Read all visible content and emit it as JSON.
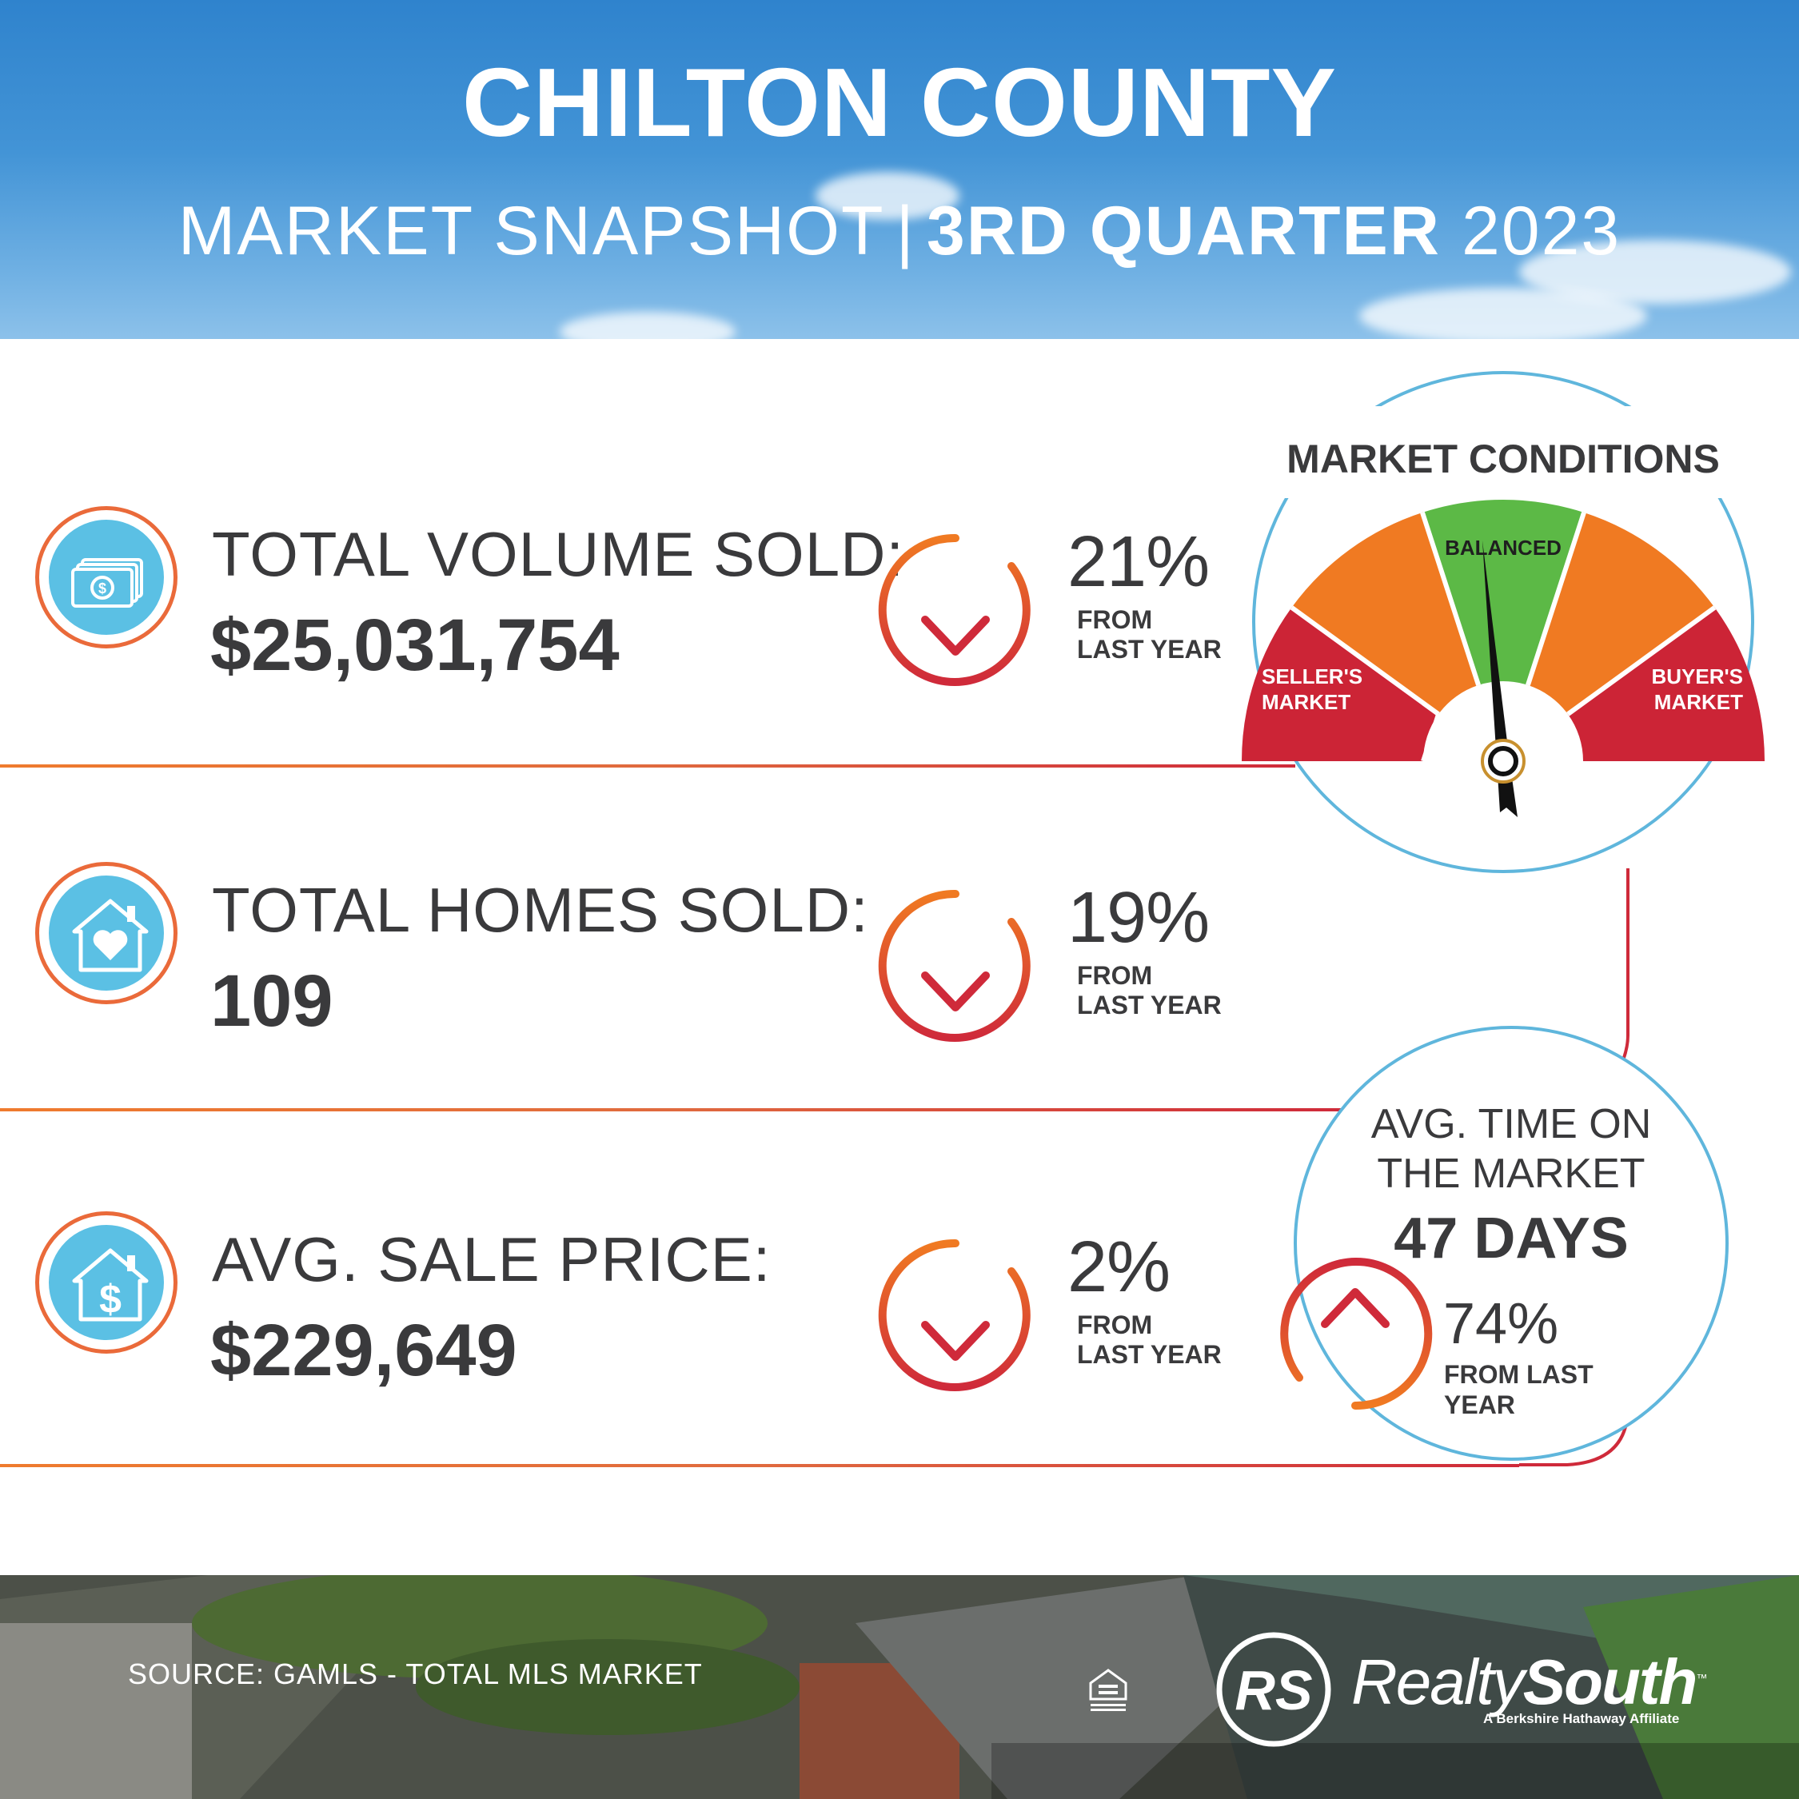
{
  "header": {
    "title": "CHILTON COUNTY",
    "subtitle_left": "MARKET SNAPSHOT",
    "subtitle_separator": "|",
    "subtitle_bold": "3RD QUARTER",
    "subtitle_year": "2023"
  },
  "stats": [
    {
      "label": "TOTAL VOLUME SOLD:",
      "value": "$25,031,754",
      "change": "21%",
      "direction": "down",
      "change_sub_1": "FROM",
      "change_sub_2": "LAST YEAR",
      "icon": "money-icon"
    },
    {
      "label": "TOTAL HOMES SOLD:",
      "value": "109",
      "change": "19%",
      "direction": "down",
      "change_sub_1": "FROM",
      "change_sub_2": "LAST YEAR",
      "icon": "house-heart-icon"
    },
    {
      "label": "AVG. SALE PRICE:",
      "value": "$229,649",
      "change": "2%",
      "direction": "down",
      "change_sub_1": "FROM",
      "change_sub_2": "LAST YEAR",
      "icon": "house-dollar-icon"
    }
  ],
  "gauge": {
    "title": "MARKET CONDITIONS",
    "center_label": "BALANCED",
    "left_label_1": "SELLER'S",
    "left_label_2": "MARKET",
    "right_label_1": "BUYER'S",
    "right_label_2": "MARKET",
    "needle_position": "balanced",
    "colors": {
      "red": "#cc2436",
      "orange": "#f07a22",
      "green": "#5cb946"
    }
  },
  "time_on_market": {
    "label_1": "AVG. TIME ON",
    "label_2": "THE MARKET",
    "value": "47 DAYS",
    "change": "74%",
    "direction": "up",
    "change_sub_1": "FROM LAST",
    "change_sub_2": "YEAR"
  },
  "footer": {
    "source": "SOURCE: GAMLS - TOTAL MLS MARKET",
    "brand_light": "Realty",
    "brand_bold": "South",
    "brand_mark": "RS",
    "tagline": "A Berkshire Hathaway Affiliate",
    "tm": "™"
  },
  "colors": {
    "sky": "#3a8ed3",
    "accent_blue": "#5bc0e4",
    "orange": "#ef7b2e",
    "red": "#cf2a3a",
    "text": "#3a3a3c"
  }
}
